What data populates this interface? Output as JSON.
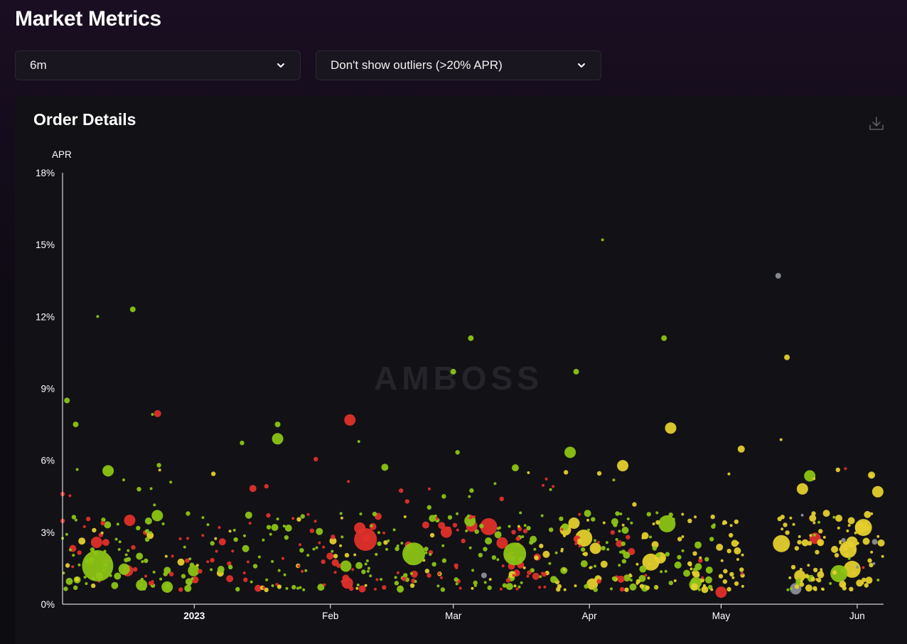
{
  "page": {
    "title": "Market Metrics"
  },
  "filters": {
    "timeframe": {
      "value": "6m",
      "icon": "chevron-down-icon"
    },
    "outliers": {
      "value": "Don't show outliers (>20% APR)",
      "icon": "chevron-down-icon"
    }
  },
  "card": {
    "title": "Order Details",
    "download_icon": "download-icon"
  },
  "watermark": "AMBOSS",
  "colors": {
    "green": "#8cc414",
    "red": "#e0302a",
    "yellow": "#e4cf2c",
    "grey": "#8a8e99",
    "axis": "#ffffff"
  },
  "chart_data": {
    "type": "scatter",
    "title": "Order Details",
    "ylabel": "APR",
    "xlabel": "",
    "ylim": [
      0,
      18
    ],
    "y_ticks": [
      0,
      3,
      6,
      9,
      12,
      15,
      18
    ],
    "y_tick_labels": [
      "0%",
      "3%",
      "6%",
      "9%",
      "12%",
      "15%",
      "18%"
    ],
    "xlim": [
      "2022-12-02",
      "2023-06-07"
    ],
    "x_ticks": [
      {
        "date": "2023-01-01",
        "label": "2023",
        "bold": true
      },
      {
        "date": "2023-02-01",
        "label": "Feb",
        "bold": false
      },
      {
        "date": "2023-03-01",
        "label": "Mar",
        "bold": false
      },
      {
        "date": "2023-04-01",
        "label": "Apr",
        "bold": false
      },
      {
        "date": "2023-05-01",
        "label": "May",
        "bold": false
      },
      {
        "date": "2023-06-01",
        "label": "Jun",
        "bold": false
      }
    ],
    "grid": false,
    "legend": "none",
    "point_color_categories": [
      "green",
      "red",
      "yellow",
      "grey"
    ],
    "notable_points": [
      {
        "date": "2022-12-03",
        "apr": 8.5,
        "color": "green",
        "size": "small"
      },
      {
        "date": "2022-12-05",
        "apr": 7.5,
        "color": "green",
        "size": "small"
      },
      {
        "date": "2022-12-10",
        "apr": 1.6,
        "color": "green",
        "size": "huge"
      },
      {
        "date": "2022-12-10",
        "apr": 12.0,
        "color": "green",
        "size": "tiny"
      },
      {
        "date": "2022-12-18",
        "apr": 12.3,
        "color": "green",
        "size": "small"
      },
      {
        "date": "2022-12-20",
        "apr": 0.8,
        "color": "green",
        "size": "medium"
      },
      {
        "date": "2023-01-20",
        "apr": 6.9,
        "color": "green",
        "size": "medium"
      },
      {
        "date": "2023-01-20",
        "apr": 7.5,
        "color": "green",
        "size": "small"
      },
      {
        "date": "2023-02-09",
        "apr": 2.7,
        "color": "red",
        "size": "large"
      },
      {
        "date": "2023-02-20",
        "apr": 2.1,
        "color": "green",
        "size": "large"
      },
      {
        "date": "2023-03-01",
        "apr": 9.7,
        "color": "green",
        "size": "small"
      },
      {
        "date": "2023-03-05",
        "apr": 11.1,
        "color": "green",
        "size": "small"
      },
      {
        "date": "2023-03-08",
        "apr": 1.2,
        "color": "grey",
        "size": "small"
      },
      {
        "date": "2023-03-15",
        "apr": 2.1,
        "color": "green",
        "size": "large"
      },
      {
        "date": "2023-03-29",
        "apr": 9.7,
        "color": "green",
        "size": "small"
      },
      {
        "date": "2023-04-04",
        "apr": 15.2,
        "color": "green",
        "size": "tiny"
      },
      {
        "date": "2023-04-18",
        "apr": 11.1,
        "color": "green",
        "size": "small"
      },
      {
        "date": "2023-05-01",
        "apr": 0.5,
        "color": "red",
        "size": "medium"
      },
      {
        "date": "2023-05-14",
        "apr": 13.7,
        "color": "grey",
        "size": "small"
      },
      {
        "date": "2023-05-16",
        "apr": 10.3,
        "color": "yellow",
        "size": "small"
      },
      {
        "date": "2023-06-05",
        "apr": 2.6,
        "color": "grey",
        "size": "small"
      }
    ]
  }
}
